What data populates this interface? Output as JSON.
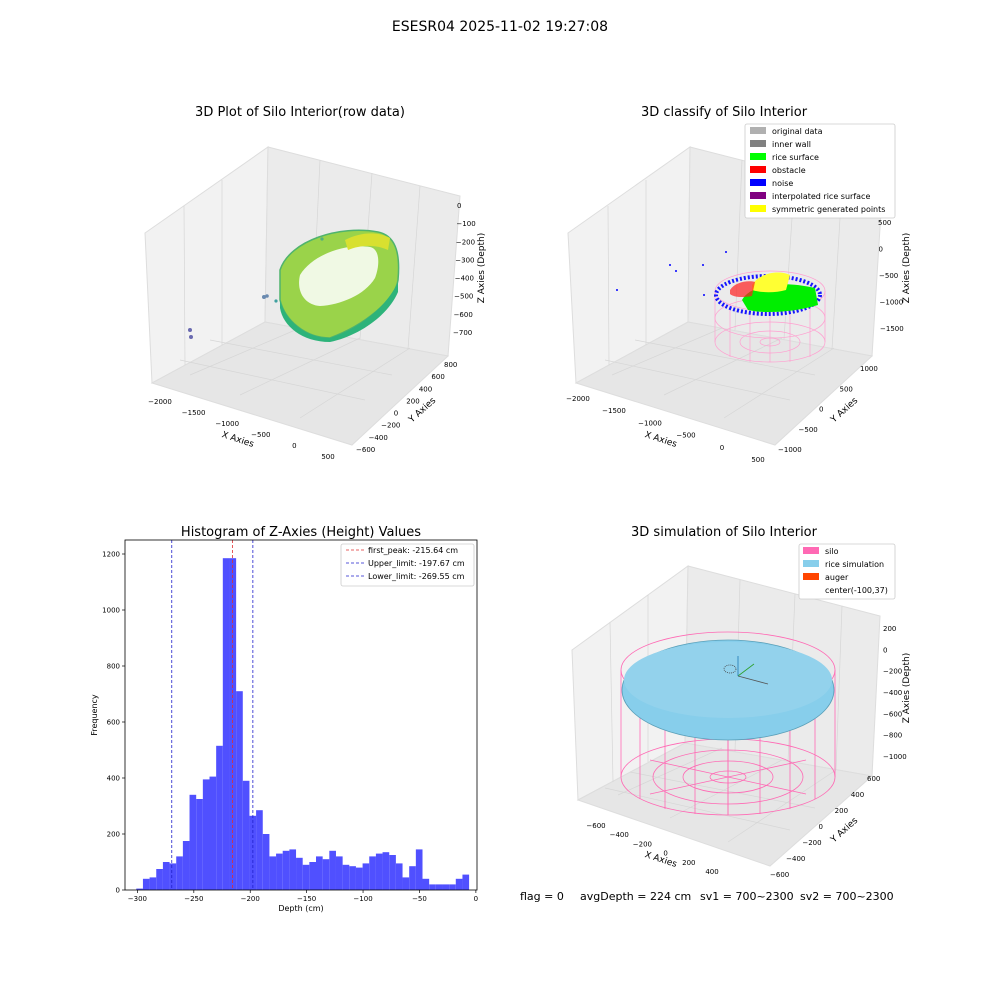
{
  "suptitle": "ESESR04 2025-11-02 19:27:08",
  "footer": {
    "flag": "flag = 0",
    "avg_depth": "avgDepth = 224 cm",
    "sv1": "sv1 = 700~2300",
    "sv2": "sv2 = 700~2300"
  },
  "colors": {
    "hist_bar": "#5050ff",
    "first_peak": "#e03030",
    "limit_lines": "#2020cc",
    "silo": "#ff69b4",
    "rice_simulation": "#87ceeb",
    "auger": "#ff4500",
    "pane": "#f2f2f2",
    "grid": "#d6d6d6"
  },
  "chart_data": [
    {
      "type": "scatter",
      "title": "3D Plot of Silo Interior(row data)",
      "xlabel": "X Axies",
      "ylabel": "Y Axies",
      "zlabel": "Z Axies (Depth)",
      "x_ticks": [
        "−2000",
        "−1500",
        "−1000",
        "−500",
        "0",
        "500"
      ],
      "y_ticks": [
        "−600",
        "−400",
        "−200",
        "0",
        "200",
        "400",
        "600",
        "800"
      ],
      "z_ticks": [
        "−700",
        "−600",
        "−500",
        "−400",
        "−300",
        "−200",
        "−100",
        "0"
      ],
      "colormap": "viridis"
    },
    {
      "type": "scatter",
      "title": "3D classify of Silo Interior",
      "xlabel": "X Axies",
      "ylabel": "Y Axies",
      "zlabel": "Z Axies (Depth)",
      "x_ticks": [
        "−2000",
        "−1500",
        "−1000",
        "−500",
        "0",
        "500"
      ],
      "y_ticks": [
        "−1000",
        "−500",
        "0",
        "500",
        "1000"
      ],
      "z_ticks": [
        "−1500",
        "−1000",
        "−500",
        "0",
        "500"
      ],
      "legend_position": "top-right",
      "legend": [
        {
          "label": "original data",
          "color": "#b0b0b0"
        },
        {
          "label": "inner wall",
          "color": "#808080"
        },
        {
          "label": "rice surface",
          "color": "#00ff00"
        },
        {
          "label": "obstacle",
          "color": "#ff0000"
        },
        {
          "label": "noise",
          "color": "#0000ff"
        },
        {
          "label": "interpolated rice surface",
          "color": "#800080"
        },
        {
          "label": "symmetric generated points",
          "color": "#ffff00"
        }
      ]
    },
    {
      "type": "bar",
      "title": "Histogram of Z-Axies (Height) Values",
      "xlabel": "Depth (cm)",
      "ylabel": "Frequency",
      "xlim": [
        -311,
        1
      ],
      "ylim": [
        0,
        1250
      ],
      "x_ticks": [
        -300,
        -250,
        -200,
        -150,
        -100,
        -50,
        0
      ],
      "x_tick_labels": [
        "−300",
        "−250",
        "−200",
        "−150",
        "−100",
        "−50",
        "0"
      ],
      "y_ticks": [
        0,
        200,
        400,
        600,
        800,
        1000,
        1200
      ],
      "bin_start": -301,
      "bin_width": 5.9,
      "values": [
        5,
        40,
        45,
        75,
        100,
        95,
        120,
        175,
        340,
        325,
        395,
        405,
        515,
        1185,
        1185,
        710,
        390,
        265,
        285,
        200,
        120,
        130,
        140,
        145,
        115,
        90,
        100,
        120,
        110,
        140,
        120,
        90,
        85,
        80,
        95,
        120,
        130,
        135,
        125,
        95,
        45,
        85,
        145,
        40,
        20,
        20,
        20,
        20,
        40,
        55
      ],
      "vlines": [
        {
          "x": -215.64,
          "label": "first_peak: -215.64 cm",
          "color": "#e03030"
        },
        {
          "x": -197.67,
          "label": "Upper_limit: -197.67 cm",
          "color": "#2020cc"
        },
        {
          "x": -269.55,
          "label": "Lower_limit: -269.55 cm",
          "color": "#2020cc"
        }
      ],
      "legend_position": "top-right"
    },
    {
      "type": "scatter",
      "title": "3D simulation of Silo Interior",
      "xlabel": "X Axies",
      "ylabel": "Y Axies",
      "zlabel": "Z Axies (Depth)",
      "x_ticks": [
        "−600",
        "−400",
        "−200",
        "0",
        "200",
        "400"
      ],
      "y_ticks": [
        "−600",
        "−400",
        "−200",
        "0",
        "200",
        "400",
        "600"
      ],
      "z_ticks": [
        "−1000",
        "−800",
        "−600",
        "−400",
        "−200",
        "0",
        "200"
      ],
      "legend_position": "top-right",
      "legend": [
        {
          "label": "silo",
          "color": "#ff69b4"
        },
        {
          "label": "rice simulation",
          "color": "#87ceeb"
        },
        {
          "label": "auger",
          "color": "#ff4500"
        },
        {
          "label": "center(-100,37)",
          "color": ""
        }
      ]
    }
  ]
}
